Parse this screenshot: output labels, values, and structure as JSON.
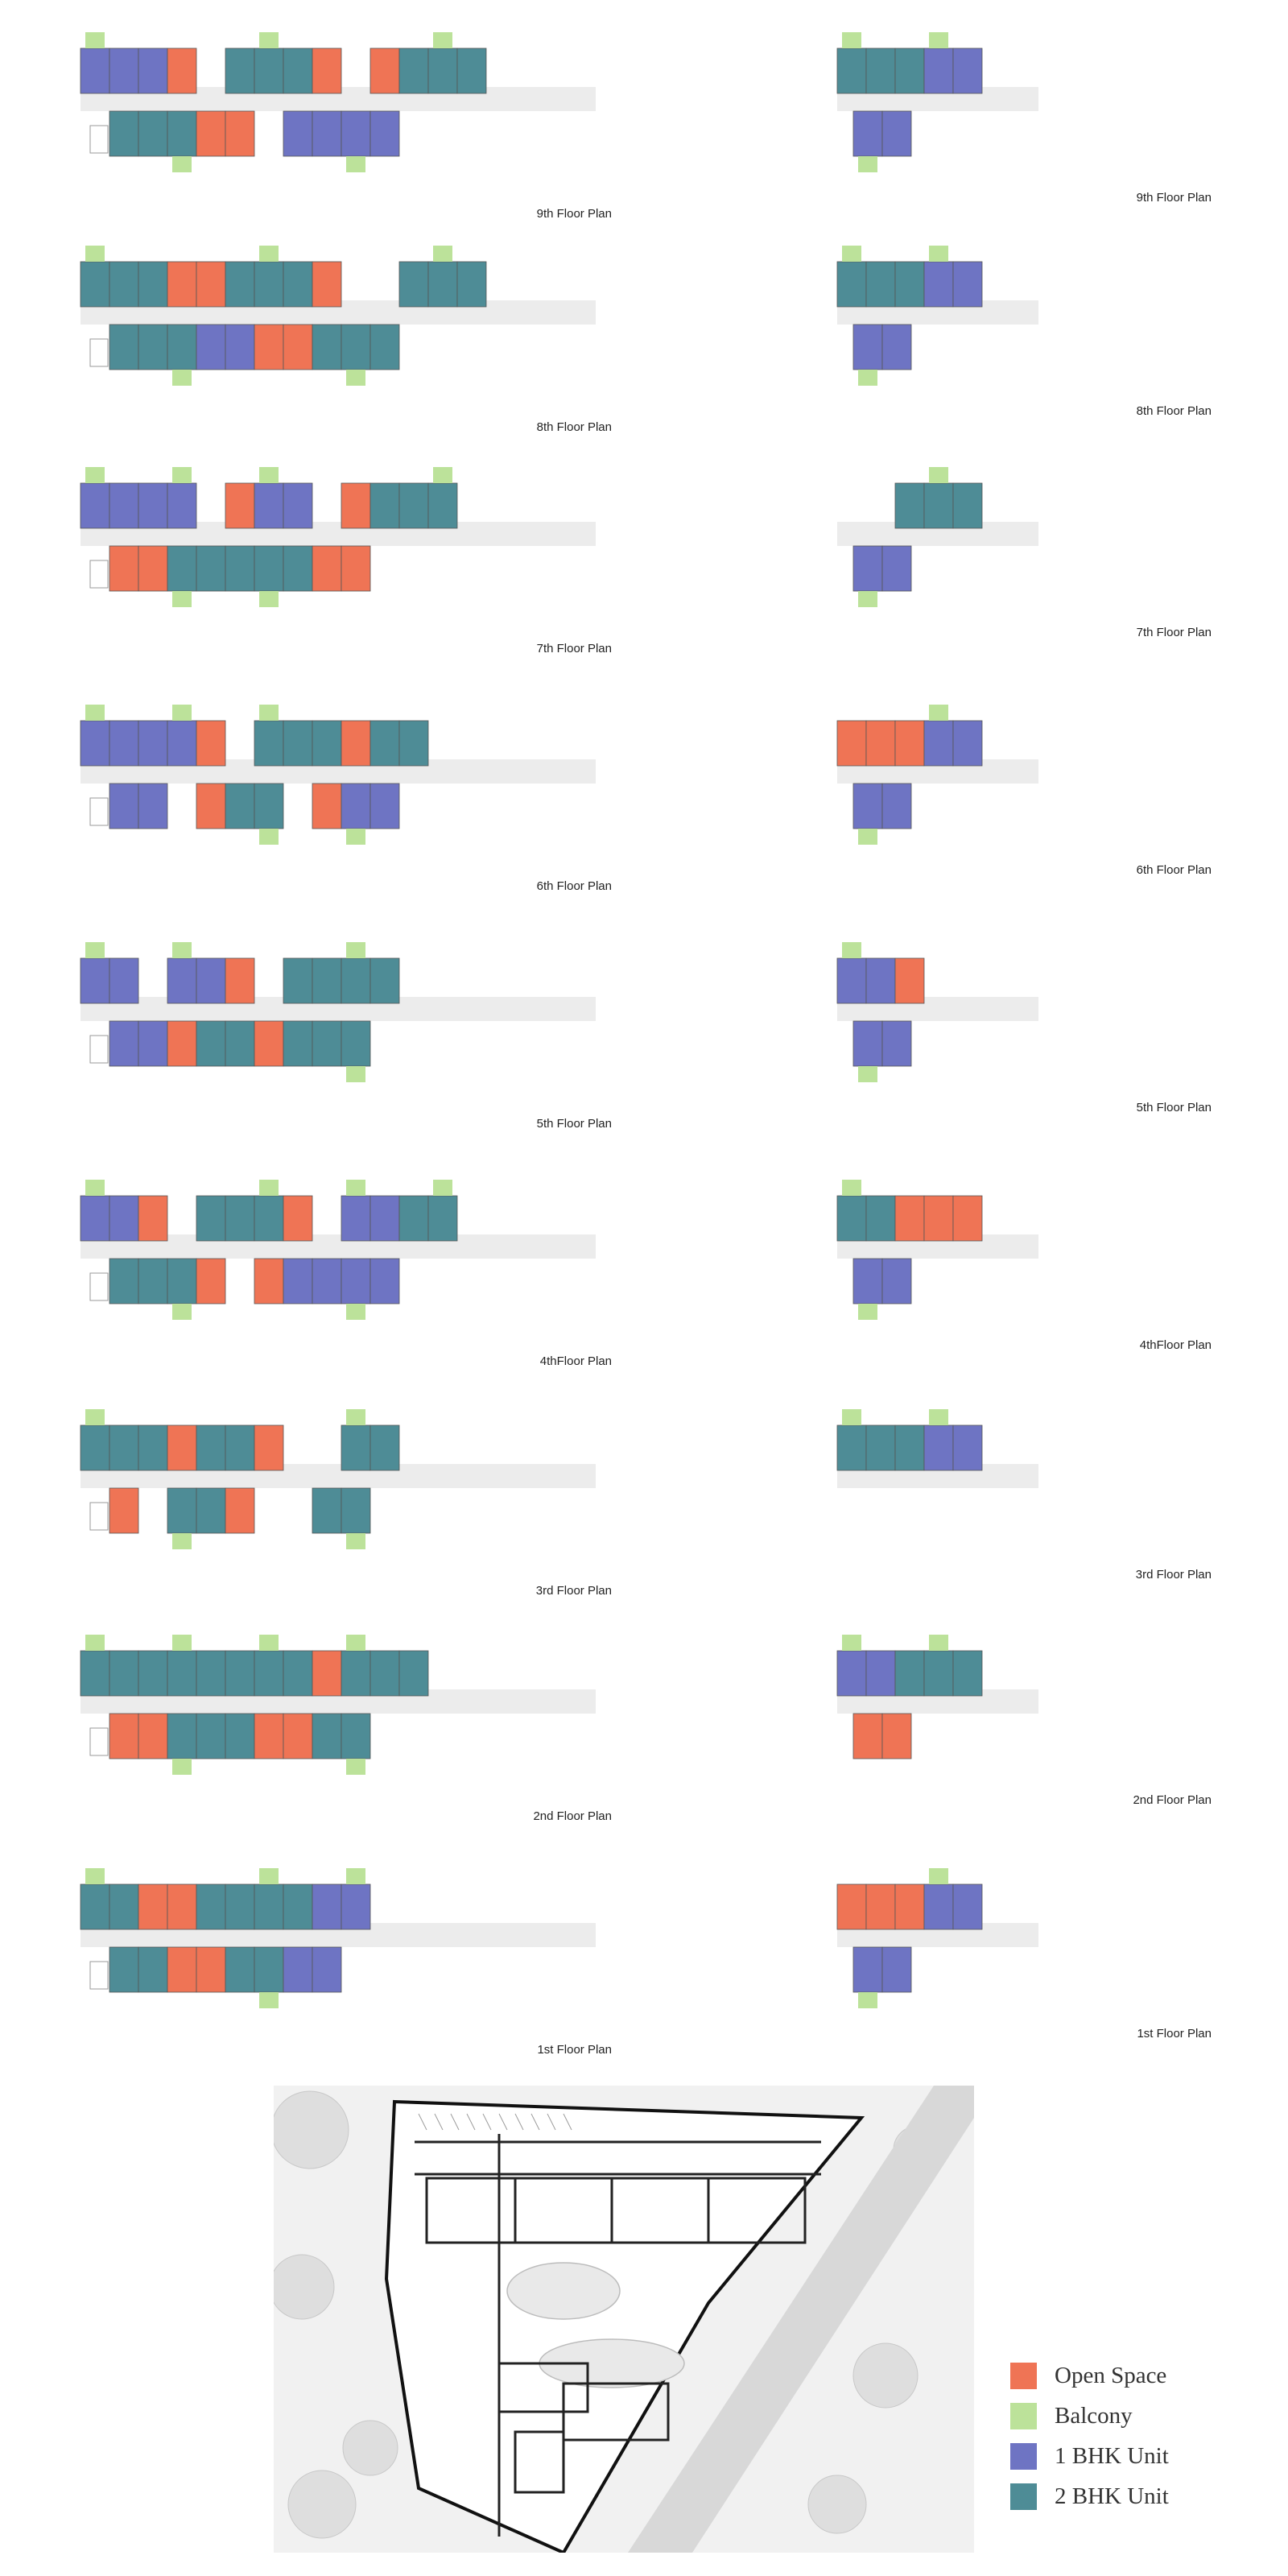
{
  "colors": {
    "open_space": "#EF7455",
    "balcony": "#BCE29A",
    "bhk1": "#6E74C3",
    "bhk2": "#4E8C96",
    "corridor": "#ECECEC",
    "stair": "#999999"
  },
  "floors": [
    {
      "key": "f9",
      "left_label": "9th Floor Plan",
      "right_label": "9th Floor Plan",
      "top_row": [
        "bhk1",
        "bhk1",
        "bhk1",
        "open",
        "gap",
        "bhk2",
        "bhk2",
        "bhk2",
        "open",
        "gap",
        "open",
        "bhk2",
        "bhk2",
        "bhk2"
      ],
      "bottom_row": [
        "gap",
        "bhk2",
        "bhk2",
        "bhk2",
        "open",
        "open",
        "gap",
        "bhk1",
        "bhk1",
        "bhk1",
        "bhk1"
      ],
      "right_top": [
        "bhk2",
        "bhk2",
        "bhk2",
        "bhk1",
        "bhk1"
      ],
      "right_bottom": [
        "bhk1",
        "bhk1"
      ]
    },
    {
      "key": "f8",
      "left_label": "8th Floor Plan",
      "right_label": "8th Floor Plan",
      "top_row": [
        "bhk2",
        "bhk2",
        "bhk2",
        "open",
        "open",
        "bhk2",
        "bhk2",
        "bhk2",
        "open",
        "gap",
        "gap",
        "bhk2",
        "bhk2",
        "bhk2"
      ],
      "bottom_row": [
        "gap",
        "bhk2",
        "bhk2",
        "bhk2",
        "bhk1",
        "bhk1",
        "open",
        "open",
        "bhk2",
        "bhk2",
        "bhk2"
      ],
      "right_top": [
        "bhk2",
        "bhk2",
        "bhk2",
        "bhk1",
        "bhk1"
      ],
      "right_bottom": [
        "bhk1",
        "bhk1"
      ]
    },
    {
      "key": "f7",
      "left_label": "7th Floor Plan",
      "right_label": "7th Floor Plan",
      "top_row": [
        "bhk1",
        "bhk1",
        "bhk1",
        "bhk1",
        "gap",
        "open",
        "bhk1",
        "bhk1",
        "gap",
        "open",
        "bhk2",
        "bhk2",
        "bhk2"
      ],
      "bottom_row": [
        "gap",
        "open",
        "open",
        "bhk2",
        "bhk2",
        "bhk2",
        "bhk2",
        "bhk2",
        "open",
        "open"
      ],
      "right_top": [
        "gap",
        "gap",
        "bhk2",
        "bhk2",
        "bhk2"
      ],
      "right_bottom": [
        "bhk1",
        "bhk1"
      ]
    },
    {
      "key": "f6",
      "left_label": "6th Floor Plan",
      "right_label": "6th Floor Plan",
      "top_row": [
        "bhk1",
        "bhk1",
        "bhk1",
        "bhk1",
        "open",
        "gap",
        "bhk2",
        "bhk2",
        "bhk2",
        "open",
        "bhk2",
        "bhk2"
      ],
      "bottom_row": [
        "gap",
        "bhk1",
        "bhk1",
        "gap",
        "open",
        "bhk2",
        "bhk2",
        "gap",
        "open",
        "bhk1",
        "bhk1"
      ],
      "right_top": [
        "open",
        "open",
        "open",
        "bhk1",
        "bhk1"
      ],
      "right_bottom": [
        "bhk1",
        "bhk1"
      ]
    },
    {
      "key": "f5",
      "left_label": "5th Floor Plan",
      "right_label": "5th Floor Plan",
      "top_row": [
        "bhk1",
        "bhk1",
        "gap",
        "bhk1",
        "bhk1",
        "open",
        "gap",
        "bhk2",
        "bhk2",
        "bhk2",
        "bhk2"
      ],
      "bottom_row": [
        "gap",
        "bhk1",
        "bhk1",
        "open",
        "bhk2",
        "bhk2",
        "open",
        "bhk2",
        "bhk2",
        "bhk2"
      ],
      "right_top": [
        "bhk1",
        "bhk1",
        "open",
        "gap",
        "gap"
      ],
      "right_bottom": [
        "bhk1",
        "bhk1"
      ]
    },
    {
      "key": "f4",
      "left_label": "4thFloor Plan",
      "right_label": "4thFloor Plan",
      "top_row": [
        "bhk1",
        "bhk1",
        "open",
        "gap",
        "bhk2",
        "bhk2",
        "bhk2",
        "open",
        "gap",
        "bhk1",
        "bhk1",
        "bhk2",
        "bhk2"
      ],
      "bottom_row": [
        "gap",
        "bhk2",
        "bhk2",
        "bhk2",
        "open",
        "gap",
        "open",
        "bhk1",
        "bhk1",
        "bhk1",
        "bhk1"
      ],
      "right_top": [
        "bhk2",
        "bhk2",
        "open",
        "open",
        "open"
      ],
      "right_bottom": [
        "bhk1",
        "bhk1"
      ]
    },
    {
      "key": "f3",
      "left_label": "3rd Floor Plan",
      "right_label": "3rd Floor Plan",
      "top_row": [
        "bhk2",
        "bhk2",
        "bhk2",
        "open",
        "bhk2",
        "bhk2",
        "open",
        "gap",
        "gap",
        "bhk2",
        "bhk2"
      ],
      "bottom_row": [
        "gap",
        "open",
        "gap",
        "bhk2",
        "bhk2",
        "open",
        "gap",
        "gap",
        "bhk2",
        "bhk2"
      ],
      "right_top": [
        "bhk2",
        "bhk2",
        "bhk2",
        "bhk1",
        "bhk1"
      ],
      "right_bottom": [
        "gap",
        "gap"
      ]
    },
    {
      "key": "f2",
      "left_label": "2nd Floor Plan",
      "right_label": "2nd Floor Plan",
      "top_row": [
        "bhk2",
        "bhk2",
        "bhk2",
        "bhk2",
        "bhk2",
        "bhk2",
        "bhk2",
        "bhk2",
        "open",
        "bhk2",
        "bhk2",
        "bhk2"
      ],
      "bottom_row": [
        "gap",
        "open",
        "open",
        "bhk2",
        "bhk2",
        "bhk2",
        "open",
        "open",
        "bhk2",
        "bhk2"
      ],
      "right_top": [
        "bhk1",
        "bhk1",
        "bhk2",
        "bhk2",
        "bhk2"
      ],
      "right_bottom": [
        "open",
        "open"
      ]
    },
    {
      "key": "f1",
      "left_label": "1st Floor Plan",
      "right_label": "1st Floor Plan",
      "top_row": [
        "bhk2",
        "bhk2",
        "open",
        "open",
        "bhk2",
        "bhk2",
        "bhk2",
        "bhk2",
        "bhk1",
        "bhk1"
      ],
      "bottom_row": [
        "gap",
        "bhk2",
        "bhk2",
        "open",
        "open",
        "bhk2",
        "bhk2",
        "bhk1",
        "bhk1"
      ],
      "right_top": [
        "open",
        "open",
        "open",
        "bhk1",
        "bhk1"
      ],
      "right_bottom": [
        "bhk1",
        "bhk1"
      ]
    }
  ],
  "legend": [
    {
      "label": "Open Space",
      "color_key": "open_space"
    },
    {
      "label": "Balcony",
      "color_key": "balcony"
    },
    {
      "label": "1 BHK Unit",
      "color_key": "bhk1"
    },
    {
      "label": "2 BHK Unit",
      "color_key": "bhk2"
    }
  ]
}
